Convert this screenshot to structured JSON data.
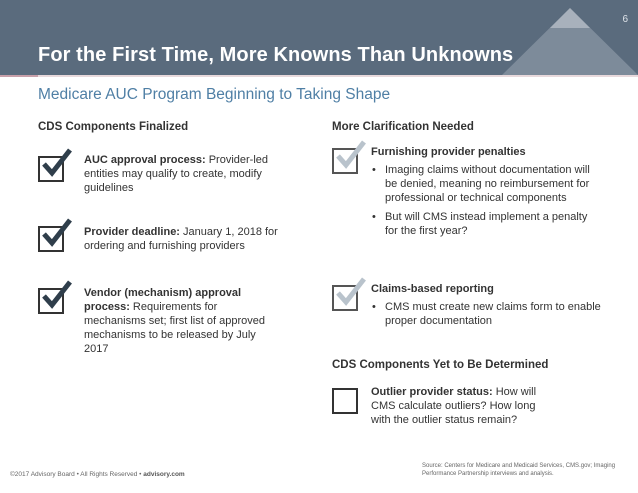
{
  "slide": {
    "title": "For the First Time, More Knowns Than Unknowns",
    "page_number": "6",
    "subtitle": "Medicare AUC Program Beginning to Taking Shape"
  },
  "left_column": {
    "heading": "CDS Components Finalized",
    "items": [
      {
        "bold": "AUC approval process:",
        "text": " Provider-led entities may qualify to create, modify guidelines"
      },
      {
        "bold": "Provider deadline:",
        "text": " January 1, 2018 for ordering and furnishing providers"
      },
      {
        "bold": "Vendor (mechanism) approval process:",
        "text": " Requirements for mechanisms set; first list of approved mechanisms to be released by July 2017"
      }
    ]
  },
  "right_column": {
    "heading": "More Clarification Needed",
    "items": [
      {
        "bold": "Furnishing provider penalties",
        "bullets": [
          "Imaging claims without documentation will be denied, meaning no reimbursement for professional or technical components",
          "But will CMS instead implement a penalty for the first year?"
        ]
      },
      {
        "bold": "Claims-based reporting",
        "bullets": [
          "CMS must create new claims form to enable proper documentation"
        ]
      }
    ],
    "tbd_heading": "CDS Components Yet to Be Determined",
    "tbd_item": {
      "bold": "Outlier provider status:",
      "text": " How will CMS calculate outliers? How long with the outlier status remain?"
    }
  },
  "footer": {
    "copyright": "©2017 Advisory Board • All Rights Reserved • ",
    "site": "advisory.com",
    "source": "Source: Centers for Medicare and Medicaid Services, CMS.gov; Imaging Performance Partnership interviews and analysis."
  },
  "colors": {
    "header": "#5a6b7d",
    "accent_blue": "#4f7fa5",
    "check_dark": "#2f3e4b",
    "check_gray": "#b9c3cc"
  },
  "icons": [
    "logo-triangle-icon",
    "checkbox-checked-icon",
    "checkbox-empty-icon"
  ]
}
